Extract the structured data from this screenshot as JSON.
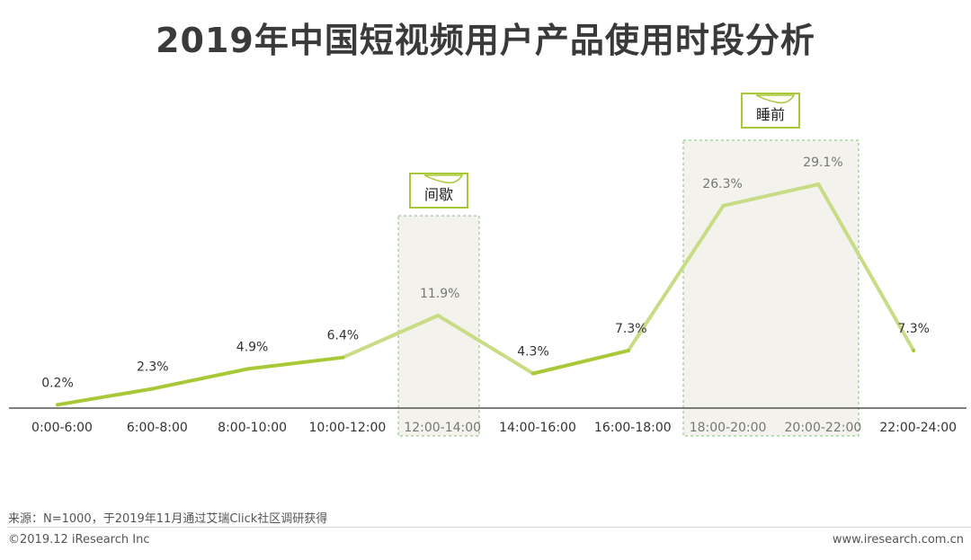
{
  "title": "2019年中国短视频用户产品使用时段分析",
  "footer": {
    "source": "来源：N=1000，于2019年11月通过艾瑞Click社区调研获得",
    "copyright": "©2019.12 iResearch Inc",
    "website": "www.iresearch.com.cn"
  },
  "colors": {
    "line_main": "#a8c937",
    "line_highlight": "#c8dc86",
    "highlight_fill": "#f3f2ec",
    "highlight_border": "#7fc07a",
    "axis": "#333333"
  },
  "chart_data": {
    "type": "line",
    "title": "2019年中国短视频用户产品使用时段分析",
    "categories": [
      "0:00-6:00",
      "6:00-8:00",
      "8:00-10:00",
      "10:00-12:00",
      "12:00-14:00",
      "14:00-16:00",
      "16:00-18:00",
      "18:00-20:00",
      "20:00-22:00",
      "22:00-24:00"
    ],
    "values": [
      0.2,
      2.3,
      4.9,
      6.4,
      11.9,
      4.3,
      7.3,
      26.3,
      29.1,
      7.3
    ],
    "value_labels": [
      "0.2%",
      "2.3%",
      "4.9%",
      "6.4%",
      "11.9%",
      "4.3%",
      "7.3%",
      "26.3%",
      "29.1%",
      "7.3%"
    ],
    "unit": "%",
    "ylim": [
      0,
      29.1
    ],
    "grid": false,
    "highlights": [
      {
        "label": "间歇",
        "categories": [
          "12:00-14:00"
        ]
      },
      {
        "label": "睡前",
        "categories": [
          "18:00-20:00",
          "20:00-22:00"
        ]
      }
    ]
  }
}
